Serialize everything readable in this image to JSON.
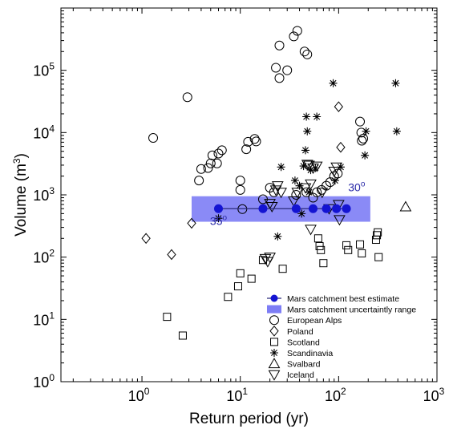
{
  "chart_data": {
    "type": "scatter",
    "title": "",
    "xlabel": "Return period (yr)",
    "ylabel_main": "Volume (m",
    "ylabel_sup": "3",
    "ylabel_tail": ")",
    "x_scale": "log",
    "y_scale": "log",
    "xlim": [
      0.15,
      1000
    ],
    "ylim": [
      1,
      1000000
    ],
    "grid": false,
    "legend_position": "bottom-right",
    "x_ticks": [
      {
        "value": 1,
        "base": "10",
        "exp": "0"
      },
      {
        "value": 10,
        "base": "10",
        "exp": "1"
      },
      {
        "value": 100,
        "base": "10",
        "exp": "2"
      },
      {
        "value": 1000,
        "base": "10",
        "exp": "3"
      }
    ],
    "y_ticks": [
      {
        "value": 1,
        "base": "10",
        "exp": "0"
      },
      {
        "value": 10,
        "base": "10",
        "exp": "1"
      },
      {
        "value": 100,
        "base": "10",
        "exp": "2"
      },
      {
        "value": 1000,
        "base": "10",
        "exp": "3"
      },
      {
        "value": 10000,
        "base": "10",
        "exp": "4"
      },
      {
        "value": 100000,
        "base": "10",
        "exp": "5"
      }
    ],
    "mars": {
      "best_estimate": {
        "name": "Mars catchment best estimate",
        "color": "#1414d2",
        "points": [
          [
            6,
            600
          ],
          [
            17,
            600
          ],
          [
            37,
            600
          ],
          [
            55,
            600
          ],
          [
            75,
            600
          ],
          [
            95,
            600
          ],
          [
            120,
            600
          ]
        ]
      },
      "uncertainty_range": {
        "name": "Mars catchment uncertaintly range",
        "color": "#7d7df5",
        "x": [
          3.2,
          210
        ],
        "y": [
          370,
          950
        ]
      },
      "annotations": [
        {
          "base": "35",
          "sup": "o",
          "x": 6,
          "y": 330,
          "anchor": "middle"
        },
        {
          "base": "30",
          "sup": "o",
          "x": 125,
          "y": 1150,
          "anchor": "start"
        }
      ],
      "annotation_color": "#2a2aa8"
    },
    "series": [
      {
        "name": "European Alps",
        "marker": "circle",
        "points": [
          [
            1.3,
            8200
          ],
          [
            2.9,
            37000
          ],
          [
            3.8,
            1700
          ],
          [
            4.0,
            2600
          ],
          [
            4.7,
            2700
          ],
          [
            5.0,
            3200
          ],
          [
            5.2,
            4300
          ],
          [
            5.8,
            3200
          ],
          [
            6.0,
            4600
          ],
          [
            6.5,
            5200
          ],
          [
            10,
            1700
          ],
          [
            10,
            1200
          ],
          [
            10.5,
            590
          ],
          [
            11.5,
            5400
          ],
          [
            12,
            7100
          ],
          [
            14,
            7900
          ],
          [
            14.5,
            7200
          ],
          [
            17,
            850
          ],
          [
            20,
            1300
          ],
          [
            22,
            1100
          ],
          [
            23,
            110000
          ],
          [
            25,
            75000
          ],
          [
            25,
            250000
          ],
          [
            30,
            100000
          ],
          [
            35,
            350000
          ],
          [
            38,
            430000
          ],
          [
            45,
            200000
          ],
          [
            48,
            180000
          ],
          [
            37,
            1000
          ],
          [
            47,
            1100
          ],
          [
            55,
            900
          ],
          [
            60,
            1100
          ],
          [
            67,
            1200
          ],
          [
            75,
            1400
          ],
          [
            82,
            1600
          ],
          [
            90,
            2000
          ],
          [
            98,
            2200
          ],
          [
            165,
            15000
          ],
          [
            170,
            10000
          ],
          [
            172,
            7400
          ],
          [
            178,
            8000
          ]
        ]
      },
      {
        "name": "Poland",
        "marker": "diamond",
        "points": [
          [
            1.1,
            200
          ],
          [
            2.0,
            110
          ],
          [
            3.2,
            350
          ],
          [
            100,
            26000
          ],
          [
            105,
            5800
          ]
        ]
      },
      {
        "name": "Scotland",
        "marker": "square",
        "points": [
          [
            1.8,
            11
          ],
          [
            2.6,
            5.5
          ],
          [
            7.5,
            23
          ],
          [
            9.5,
            34
          ],
          [
            10,
            55
          ],
          [
            13,
            45
          ],
          [
            17,
            90
          ],
          [
            27,
            65
          ],
          [
            62,
            200
          ],
          [
            64,
            150
          ],
          [
            66,
            130
          ],
          [
            70,
            80
          ],
          [
            120,
            155
          ],
          [
            125,
            130
          ],
          [
            165,
            160
          ],
          [
            172,
            115
          ],
          [
            240,
            190
          ],
          [
            245,
            225
          ],
          [
            250,
            250
          ],
          [
            255,
            100
          ]
        ]
      },
      {
        "name": "Scandinavia",
        "marker": "asterisk",
        "points": [
          [
            6,
            420
          ],
          [
            24,
            215
          ],
          [
            26,
            2800
          ],
          [
            36,
            1700
          ],
          [
            40,
            1400
          ],
          [
            42,
            500
          ],
          [
            44,
            2900
          ],
          [
            46,
            5200
          ],
          [
            47,
            18000
          ],
          [
            48,
            10500
          ],
          [
            50,
            1100
          ],
          [
            52,
            2500
          ],
          [
            58,
            2700
          ],
          [
            60,
            18000
          ],
          [
            88,
            62000
          ],
          [
            92,
            1700
          ],
          [
            105,
            2800
          ],
          [
            185,
            4300
          ],
          [
            190,
            10500
          ],
          [
            380,
            62000
          ],
          [
            390,
            10500
          ]
        ]
      },
      {
        "name": "Svalbard",
        "marker": "triangle-up",
        "points": [
          [
            480,
            640
          ]
        ]
      },
      {
        "name": "Iceland",
        "marker": "triangle-down",
        "points": [
          [
            18,
            95
          ],
          [
            19,
            85
          ],
          [
            20,
            100
          ],
          [
            20,
            730
          ],
          [
            21,
            650
          ],
          [
            23,
            1200
          ],
          [
            24,
            1400
          ],
          [
            26,
            1100
          ],
          [
            35,
            800
          ],
          [
            38,
            1100
          ],
          [
            46,
            1300
          ],
          [
            48,
            3100
          ],
          [
            50,
            3000
          ],
          [
            52,
            1500
          ],
          [
            52,
            280
          ],
          [
            55,
            2700
          ],
          [
            60,
            2900
          ],
          [
            68,
            1100
          ],
          [
            80,
            600
          ],
          [
            90,
            2400
          ],
          [
            95,
            2800
          ],
          [
            100,
            700
          ],
          [
            102,
            400
          ]
        ]
      }
    ]
  }
}
